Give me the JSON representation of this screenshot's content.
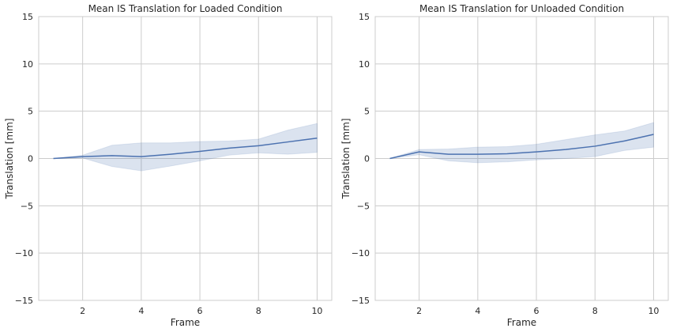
{
  "chart_data": [
    {
      "type": "line",
      "title": "Mean IS Translation for Loaded Condition",
      "xlabel": "Frame",
      "ylabel": "Translation [mm]",
      "xlim": [
        0.5,
        10.5
      ],
      "ylim": [
        -15,
        15
      ],
      "xticks": [
        2,
        4,
        6,
        8,
        10
      ],
      "yticks": [
        -15,
        -10,
        -5,
        0,
        5,
        10,
        15
      ],
      "grid": true,
      "series": [
        {
          "x": [
            1,
            2,
            3,
            4,
            5,
            6,
            7,
            8,
            9,
            10
          ],
          "values": [
            0.0,
            0.2,
            0.3,
            0.2,
            0.45,
            0.75,
            1.1,
            1.35,
            1.75,
            2.15
          ],
          "ci_lower": [
            0.0,
            0.05,
            -0.85,
            -1.3,
            -0.8,
            -0.25,
            0.35,
            0.6,
            0.45,
            0.65
          ],
          "ci_upper": [
            0.0,
            0.35,
            1.4,
            1.65,
            1.65,
            1.8,
            1.85,
            2.05,
            3.0,
            3.7
          ],
          "color": "#4c72b0"
        }
      ]
    },
    {
      "type": "line",
      "title": "Mean IS Translation for Unloaded Condition",
      "xlabel": "Frame",
      "ylabel": "Translation [mm]",
      "xlim": [
        0.5,
        10.5
      ],
      "ylim": [
        -15,
        15
      ],
      "xticks": [
        2,
        4,
        6,
        8,
        10
      ],
      "yticks": [
        -15,
        -10,
        -5,
        0,
        5,
        10,
        15
      ],
      "grid": true,
      "series": [
        {
          "x": [
            1,
            2,
            3,
            4,
            5,
            6,
            7,
            8,
            9,
            10
          ],
          "values": [
            0.0,
            0.7,
            0.45,
            0.45,
            0.5,
            0.7,
            0.95,
            1.3,
            1.85,
            2.55
          ],
          "ci_lower": [
            0.0,
            0.4,
            -0.25,
            -0.45,
            -0.35,
            -0.15,
            0.0,
            0.2,
            0.85,
            1.2
          ],
          "ci_upper": [
            0.0,
            0.95,
            1.0,
            1.2,
            1.25,
            1.5,
            2.0,
            2.5,
            2.9,
            3.8
          ],
          "color": "#4c72b0"
        }
      ]
    }
  ]
}
